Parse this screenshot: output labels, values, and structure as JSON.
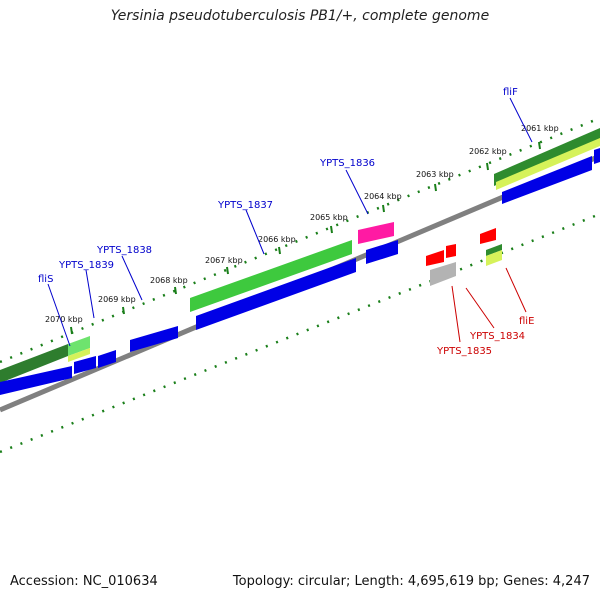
{
  "title": "Yersinia pseudotuberculosis PB1/+, complete genome",
  "footer": {
    "accession": "Accession: NC_010634",
    "stats": "Topology: circular; Length: 4,695,619 bp; Genes: 4,247"
  },
  "kbp_labels": [
    "2070 kbp",
    "2069 kbp",
    "2068 kbp",
    "2067 kbp",
    "2066 kbp",
    "2065 kbp",
    "2064 kbp",
    "2063 kbp",
    "2062 kbp",
    "2061 kbp"
  ],
  "gene_labels_forward": [
    "fliS",
    "YPTS_1839",
    "YPTS_1838",
    "YPTS_1837",
    "YPTS_1836",
    "fliF"
  ],
  "gene_labels_reverse": [
    "YPTS_1835",
    "YPTS_1834",
    "fliE"
  ],
  "colors": {
    "axis": "#808080",
    "tick": "#1a7f1a",
    "cds": "#0000e6",
    "gene_dark": "#2e8b2e",
    "gene_light": "#66d966",
    "pink": "#ff1aa3",
    "red": "#ff0000",
    "grey": "#b3b3b3",
    "forward_label": "#0000cc",
    "reverse_label": "#cc0000"
  }
}
